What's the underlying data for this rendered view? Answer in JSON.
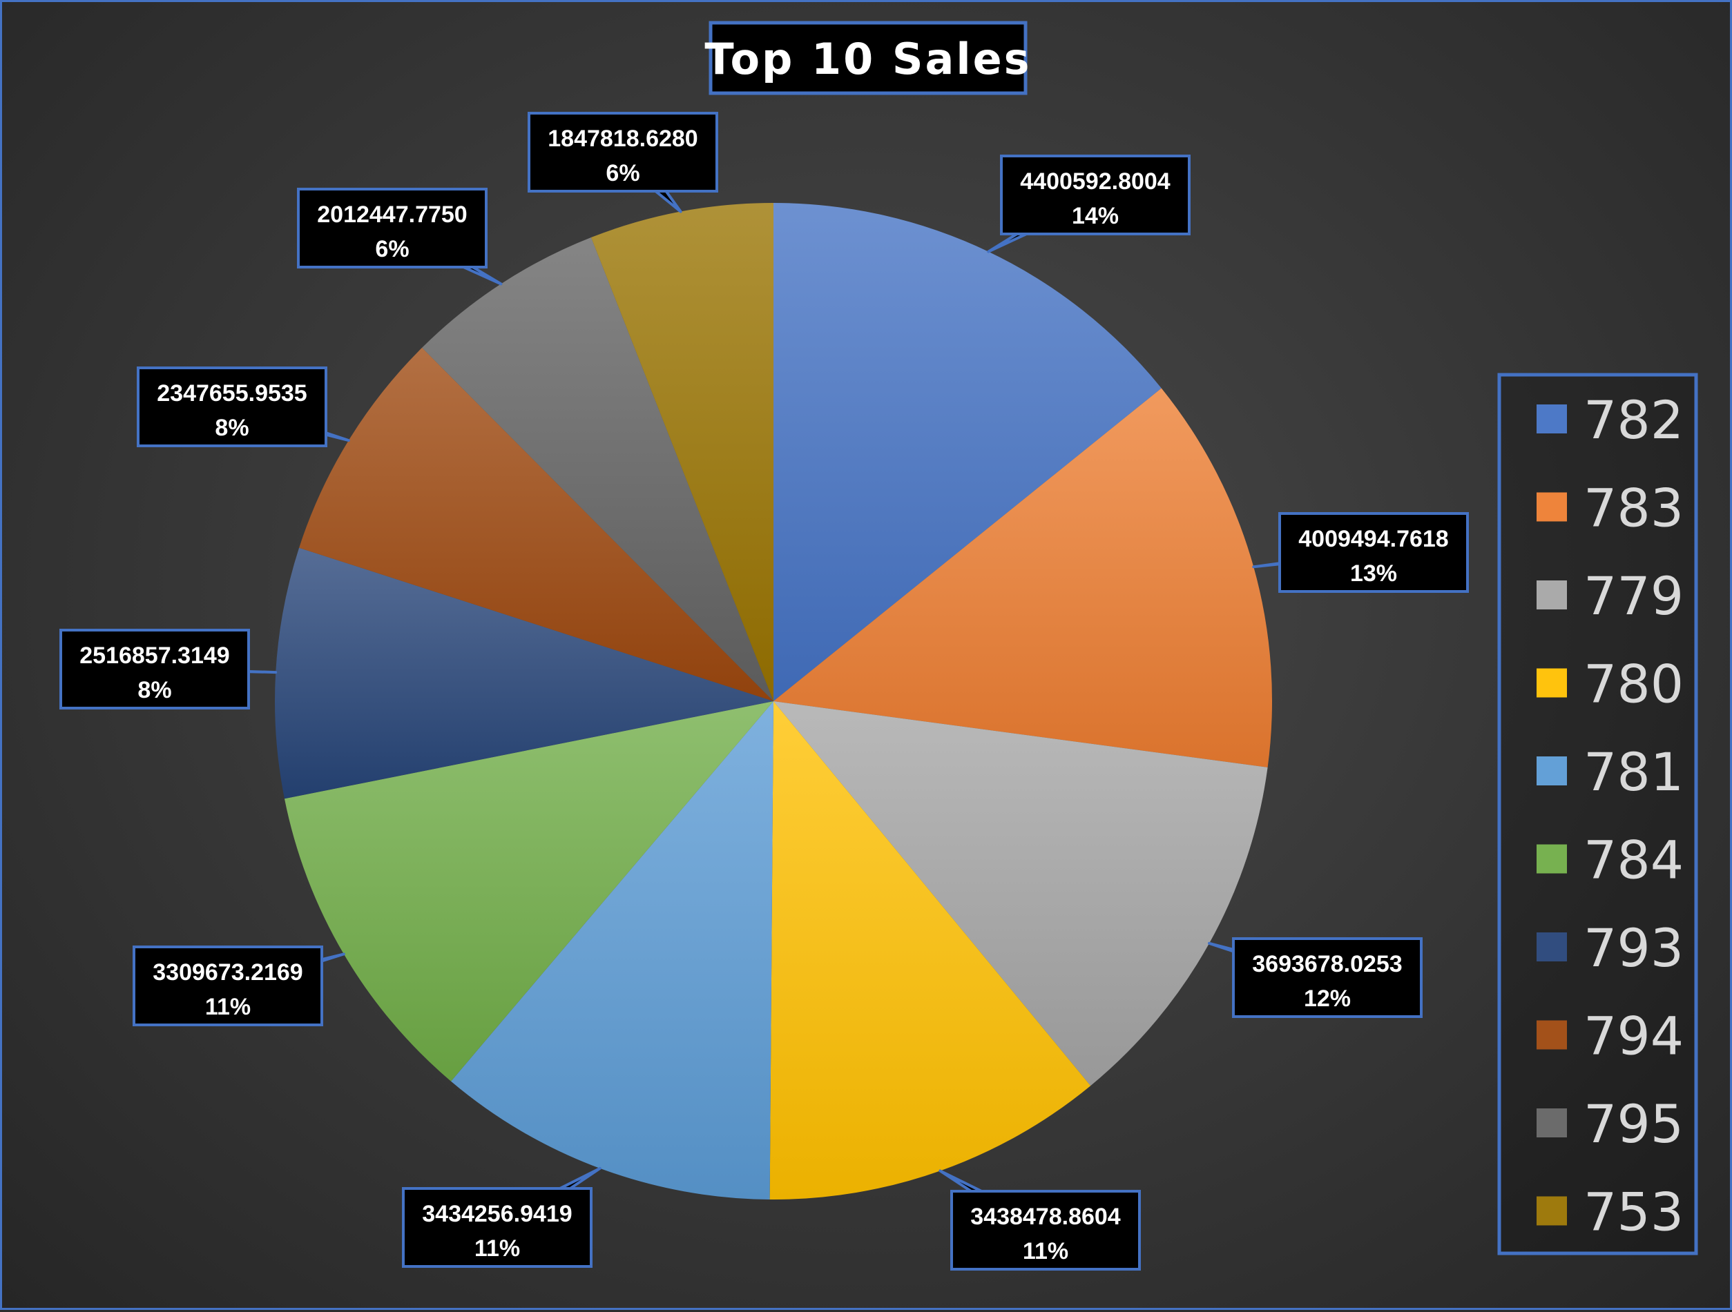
{
  "chart_data": {
    "type": "pie",
    "title": "Top 10 Sales",
    "legend_position": "right",
    "slices": [
      {
        "label": "782",
        "value": 4400592.8004,
        "value_text": "4400592.8004",
        "percent": "14%",
        "color": "#4472c4"
      },
      {
        "label": "783",
        "value": 4009494.7618,
        "value_text": "4009494.7618",
        "percent": "13%",
        "color": "#ed7d31"
      },
      {
        "label": "779",
        "value": 3693678.0253,
        "value_text": "3693678.0253",
        "percent": "12%",
        "color": "#a5a5a5"
      },
      {
        "label": "780",
        "value": 3438478.8604,
        "value_text": "3438478.8604",
        "percent": "11%",
        "color": "#ffc000"
      },
      {
        "label": "781",
        "value": 3434256.9419,
        "value_text": "3434256.9419",
        "percent": "11%",
        "color": "#5b9bd5"
      },
      {
        "label": "784",
        "value": 3309673.2169,
        "value_text": "3309673.2169",
        "percent": "11%",
        "color": "#70ad47"
      },
      {
        "label": "793",
        "value": 2516857.3149,
        "value_text": "2516857.3149",
        "percent": "8%",
        "color": "#264478"
      },
      {
        "label": "794",
        "value": 2347655.9535,
        "value_text": "2347655.9535",
        "percent": "8%",
        "color": "#9e480e"
      },
      {
        "label": "795",
        "value": 2012447.775,
        "value_text": "2012447.7750",
        "percent": "6%",
        "color": "#636363"
      },
      {
        "label": "753",
        "value": 1847818.628,
        "value_text": "1847818.6280",
        "percent": "6%",
        "color": "#997300"
      }
    ]
  }
}
